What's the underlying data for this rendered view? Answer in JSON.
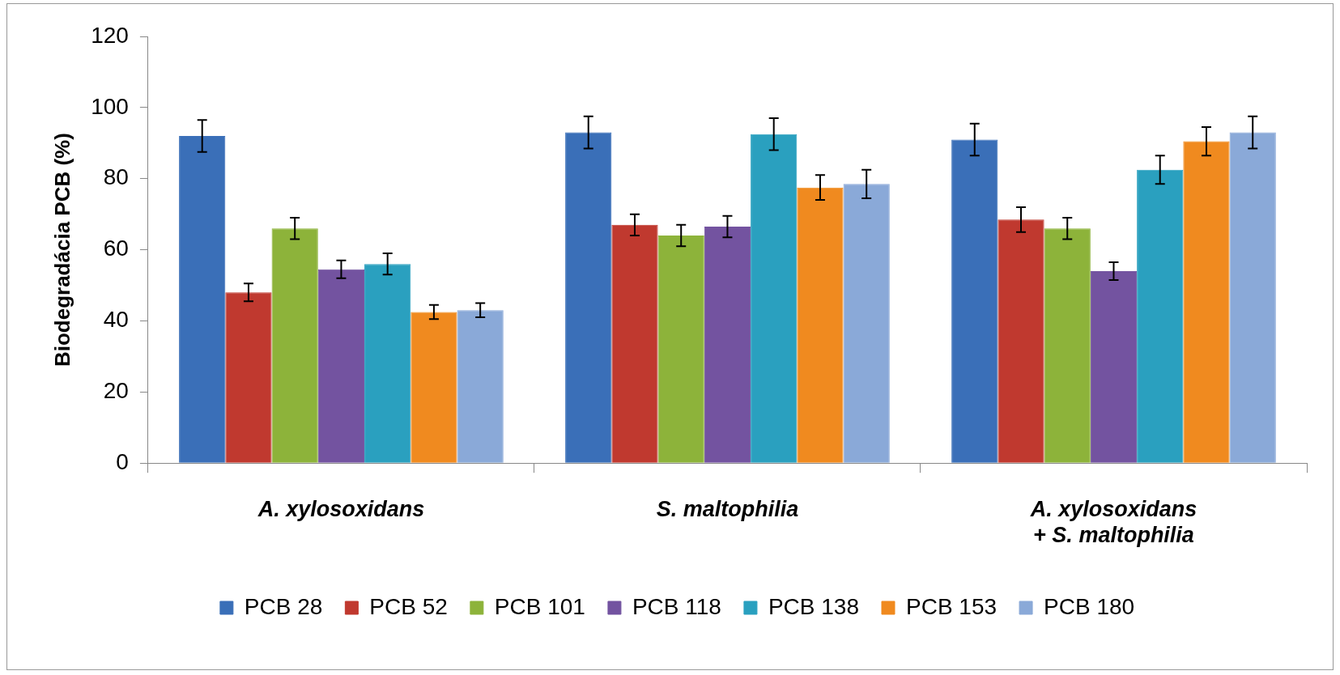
{
  "chart_data": {
    "type": "bar",
    "ylabel": "Biodegradácia PCB (%)",
    "categories": [
      "A. xylosoxidans",
      "S. maltophilia",
      "A. xylosoxidans\n+ S. maltophilia"
    ],
    "ylim": [
      0,
      120
    ],
    "yticks": [
      0,
      20,
      40,
      60,
      80,
      100,
      120
    ],
    "grid": false,
    "legend": "bottom",
    "series": [
      {
        "name": "PCB 28",
        "color": "#3a6fb8",
        "values": [
          92,
          93,
          91
        ],
        "errors": [
          4.5,
          4.5,
          4.5
        ]
      },
      {
        "name": "PCB 52",
        "color": "#c0392f",
        "values": [
          48,
          67,
          68.5
        ],
        "errors": [
          2.5,
          3,
          3.5
        ]
      },
      {
        "name": "PCB 101",
        "color": "#8db33a",
        "values": [
          66,
          64,
          66
        ],
        "errors": [
          3,
          3,
          3
        ]
      },
      {
        "name": "PCB 118",
        "color": "#7353a0",
        "values": [
          54.5,
          66.5,
          54
        ],
        "errors": [
          2.5,
          3,
          2.5
        ]
      },
      {
        "name": "PCB 138",
        "color": "#2aa0bf",
        "values": [
          56,
          92.5,
          82.5
        ],
        "errors": [
          3,
          4.5,
          4
        ]
      },
      {
        "name": "PCB 153",
        "color": "#f08a1f",
        "values": [
          42.5,
          77.5,
          90.5
        ],
        "errors": [
          2,
          3.5,
          4
        ]
      },
      {
        "name": "PCB 180",
        "color": "#8aa9d8",
        "values": [
          43,
          78.5,
          93
        ],
        "errors": [
          2,
          4,
          4.5
        ]
      }
    ]
  }
}
